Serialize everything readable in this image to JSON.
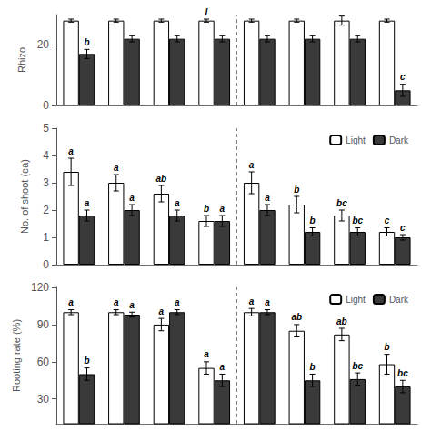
{
  "chart_data": [
    {
      "type": "bar",
      "ylabel": "Rhizo",
      "categories": [
        null,
        null,
        null,
        null,
        null,
        null,
        null,
        null
      ],
      "ylim": [
        0,
        30
      ],
      "yticks": [
        0,
        20
      ],
      "tick_labels": "y",
      "grid": false,
      "divider_x": 3.5,
      "series": [
        {
          "color": "white",
          "values": [
            28,
            28,
            28,
            28,
            28,
            28,
            28,
            28
          ],
          "errors": [
            0.5,
            0.5,
            0.5,
            0.5,
            0.5,
            0.5,
            1.5,
            0.5
          ],
          "letters": [
            null,
            null,
            null,
            "l",
            null,
            null,
            null,
            null
          ]
        },
        {
          "color": "#3a3a3a",
          "values": [
            17,
            22,
            22,
            22,
            22,
            22,
            22,
            5
          ],
          "errors": [
            1.5,
            1.0,
            1.0,
            1.0,
            1.0,
            1.0,
            1.0,
            2.0
          ],
          "letters": [
            "b",
            null,
            null,
            null,
            null,
            null,
            null,
            "c"
          ]
        }
      ]
    },
    {
      "type": "bar",
      "ylabel": "No. of shoot (ea)",
      "categories": [
        null,
        null,
        null,
        null,
        null,
        null,
        null,
        null
      ],
      "ylim": [
        0,
        5
      ],
      "yticks": [
        0,
        1,
        2,
        3,
        4,
        5
      ],
      "tick_labels": "y",
      "grid": false,
      "divider_x": 3.5,
      "legend": "upper right",
      "series": [
        {
          "name": "Light",
          "color": "white",
          "values": [
            3.4,
            3.0,
            2.6,
            1.6,
            3.0,
            2.2,
            1.8,
            1.2
          ],
          "errors": [
            0.5,
            0.3,
            0.3,
            0.2,
            0.4,
            0.3,
            0.2,
            0.15
          ],
          "letters": [
            "a",
            "a",
            "ab",
            "b",
            "a",
            "b",
            "bc",
            "c"
          ]
        },
        {
          "name": "Dark",
          "color": "#3a3a3a",
          "values": [
            1.8,
            2.0,
            1.8,
            1.6,
            2.0,
            1.2,
            1.2,
            1.0
          ],
          "errors": [
            0.2,
            0.2,
            0.2,
            0.2,
            0.2,
            0.15,
            0.15,
            0.1
          ],
          "letters": [
            "a",
            "a",
            "a",
            "a",
            "a",
            "b",
            "bc",
            "c"
          ]
        }
      ]
    },
    {
      "type": "bar",
      "ylabel": "Rooting rate (%)",
      "categories": [
        null,
        null,
        null,
        null,
        null,
        null,
        null,
        null
      ],
      "ylim": [
        10,
        120
      ],
      "yticks": [
        30,
        60,
        90,
        120
      ],
      "tick_labels": "y",
      "grid": false,
      "divider_x": 3.5,
      "legend": "upper right",
      "series": [
        {
          "name": "Light",
          "color": "white",
          "values": [
            100,
            100,
            90,
            55,
            100,
            85,
            82,
            58
          ],
          "errors": [
            2,
            2,
            5,
            5,
            3,
            5,
            5,
            8
          ],
          "letters": [
            "a",
            "a",
            "a",
            "a",
            "a",
            "ab",
            "ab",
            "b"
          ]
        },
        {
          "name": "Dark",
          "color": "#3a3a3a",
          "values": [
            50,
            98,
            100,
            45,
            100,
            45,
            46,
            40
          ],
          "errors": [
            5,
            2,
            2,
            5,
            2,
            5,
            5,
            5
          ],
          "letters": [
            "b",
            "a",
            "a",
            "a",
            "a",
            "b",
            "bc",
            "bc"
          ]
        }
      ]
    }
  ]
}
